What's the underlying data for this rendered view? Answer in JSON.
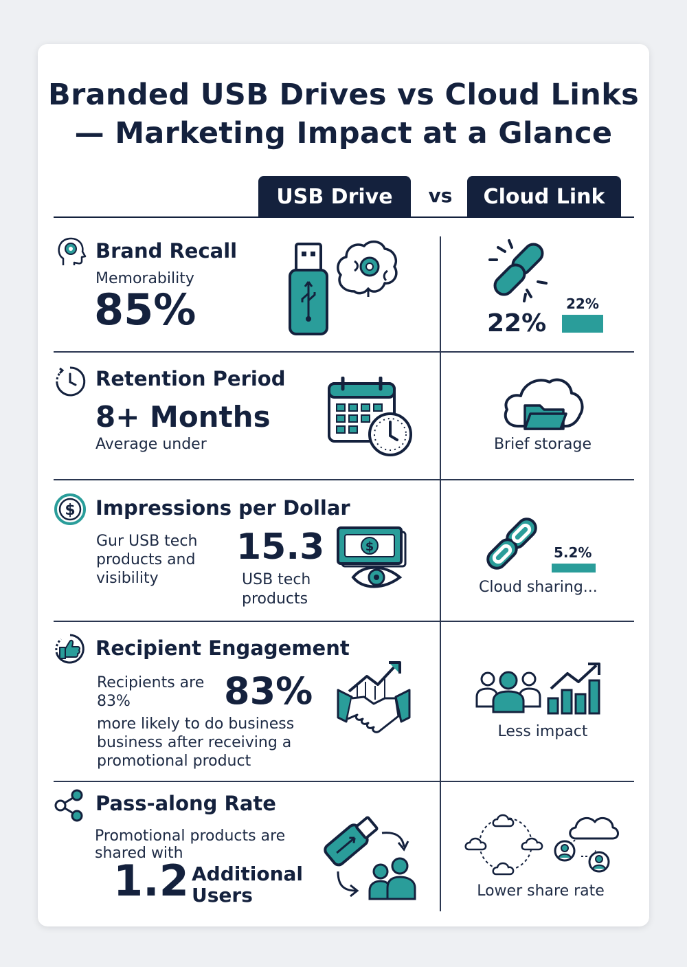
{
  "title": {
    "line1": "Branded USB Drives vs Cloud Links",
    "line2": "— Marketing Impact at a Glance"
  },
  "header": {
    "usb_label": "USB Drive",
    "vs_label": "vs",
    "cloud_label": "Cloud Link"
  },
  "rows": {
    "recall": {
      "heading": "Brand Recall",
      "subtitle": "Memorability",
      "usb_value": "85%",
      "cloud_value": "22%",
      "cloud_bar_label": "22%",
      "cloud_bar_value": 22
    },
    "retention": {
      "heading": "Retention Period",
      "usb_value": "8+ Months",
      "subtitle": "Average under",
      "cloud_text": "Brief storage"
    },
    "impressions": {
      "heading": "Impressions per Dollar",
      "body_lines": [
        "Gur USB tech",
        "products and",
        "visibility"
      ],
      "usb_value": "15.3",
      "value_caption_lines": [
        "USB tech",
        "products"
      ],
      "cloud_bar_label": "5.2%",
      "cloud_bar_value": 5.2,
      "cloud_text": "Cloud sharing..."
    },
    "engagement": {
      "heading": "Recipient Engagement",
      "intro_lines": [
        "Recipients are",
        "83%"
      ],
      "usb_value": "83%",
      "body_lines": [
        "more likely to do business",
        "business after receiving a",
        "promotional product"
      ],
      "cloud_text": "Less impact"
    },
    "passalong": {
      "heading": "Pass-along Rate",
      "body_lines": [
        "Promotional products are",
        "shared with"
      ],
      "usb_value": "1.2",
      "value_label_lines": [
        "Additional",
        "Users"
      ],
      "cloud_text": "Lower share rate"
    }
  },
  "colors": {
    "navy": "#14213d",
    "teal": "#2a9d9a",
    "light_gray": "#eef0f3"
  },
  "icons": [
    "head-gear-icon",
    "usb-drive-icon",
    "brain-gear-icon",
    "broken-link-icon",
    "clock-icon",
    "calendar-clock-icon",
    "cloud-folder-icon",
    "dollar-icon",
    "money-eye-icon",
    "chain-link-icon",
    "thumbs-up-icon",
    "handshake-growth-icon",
    "people-group-icon",
    "bar-growth-icon",
    "share-icon",
    "usb-share-icon",
    "cloud-network-icon"
  ]
}
